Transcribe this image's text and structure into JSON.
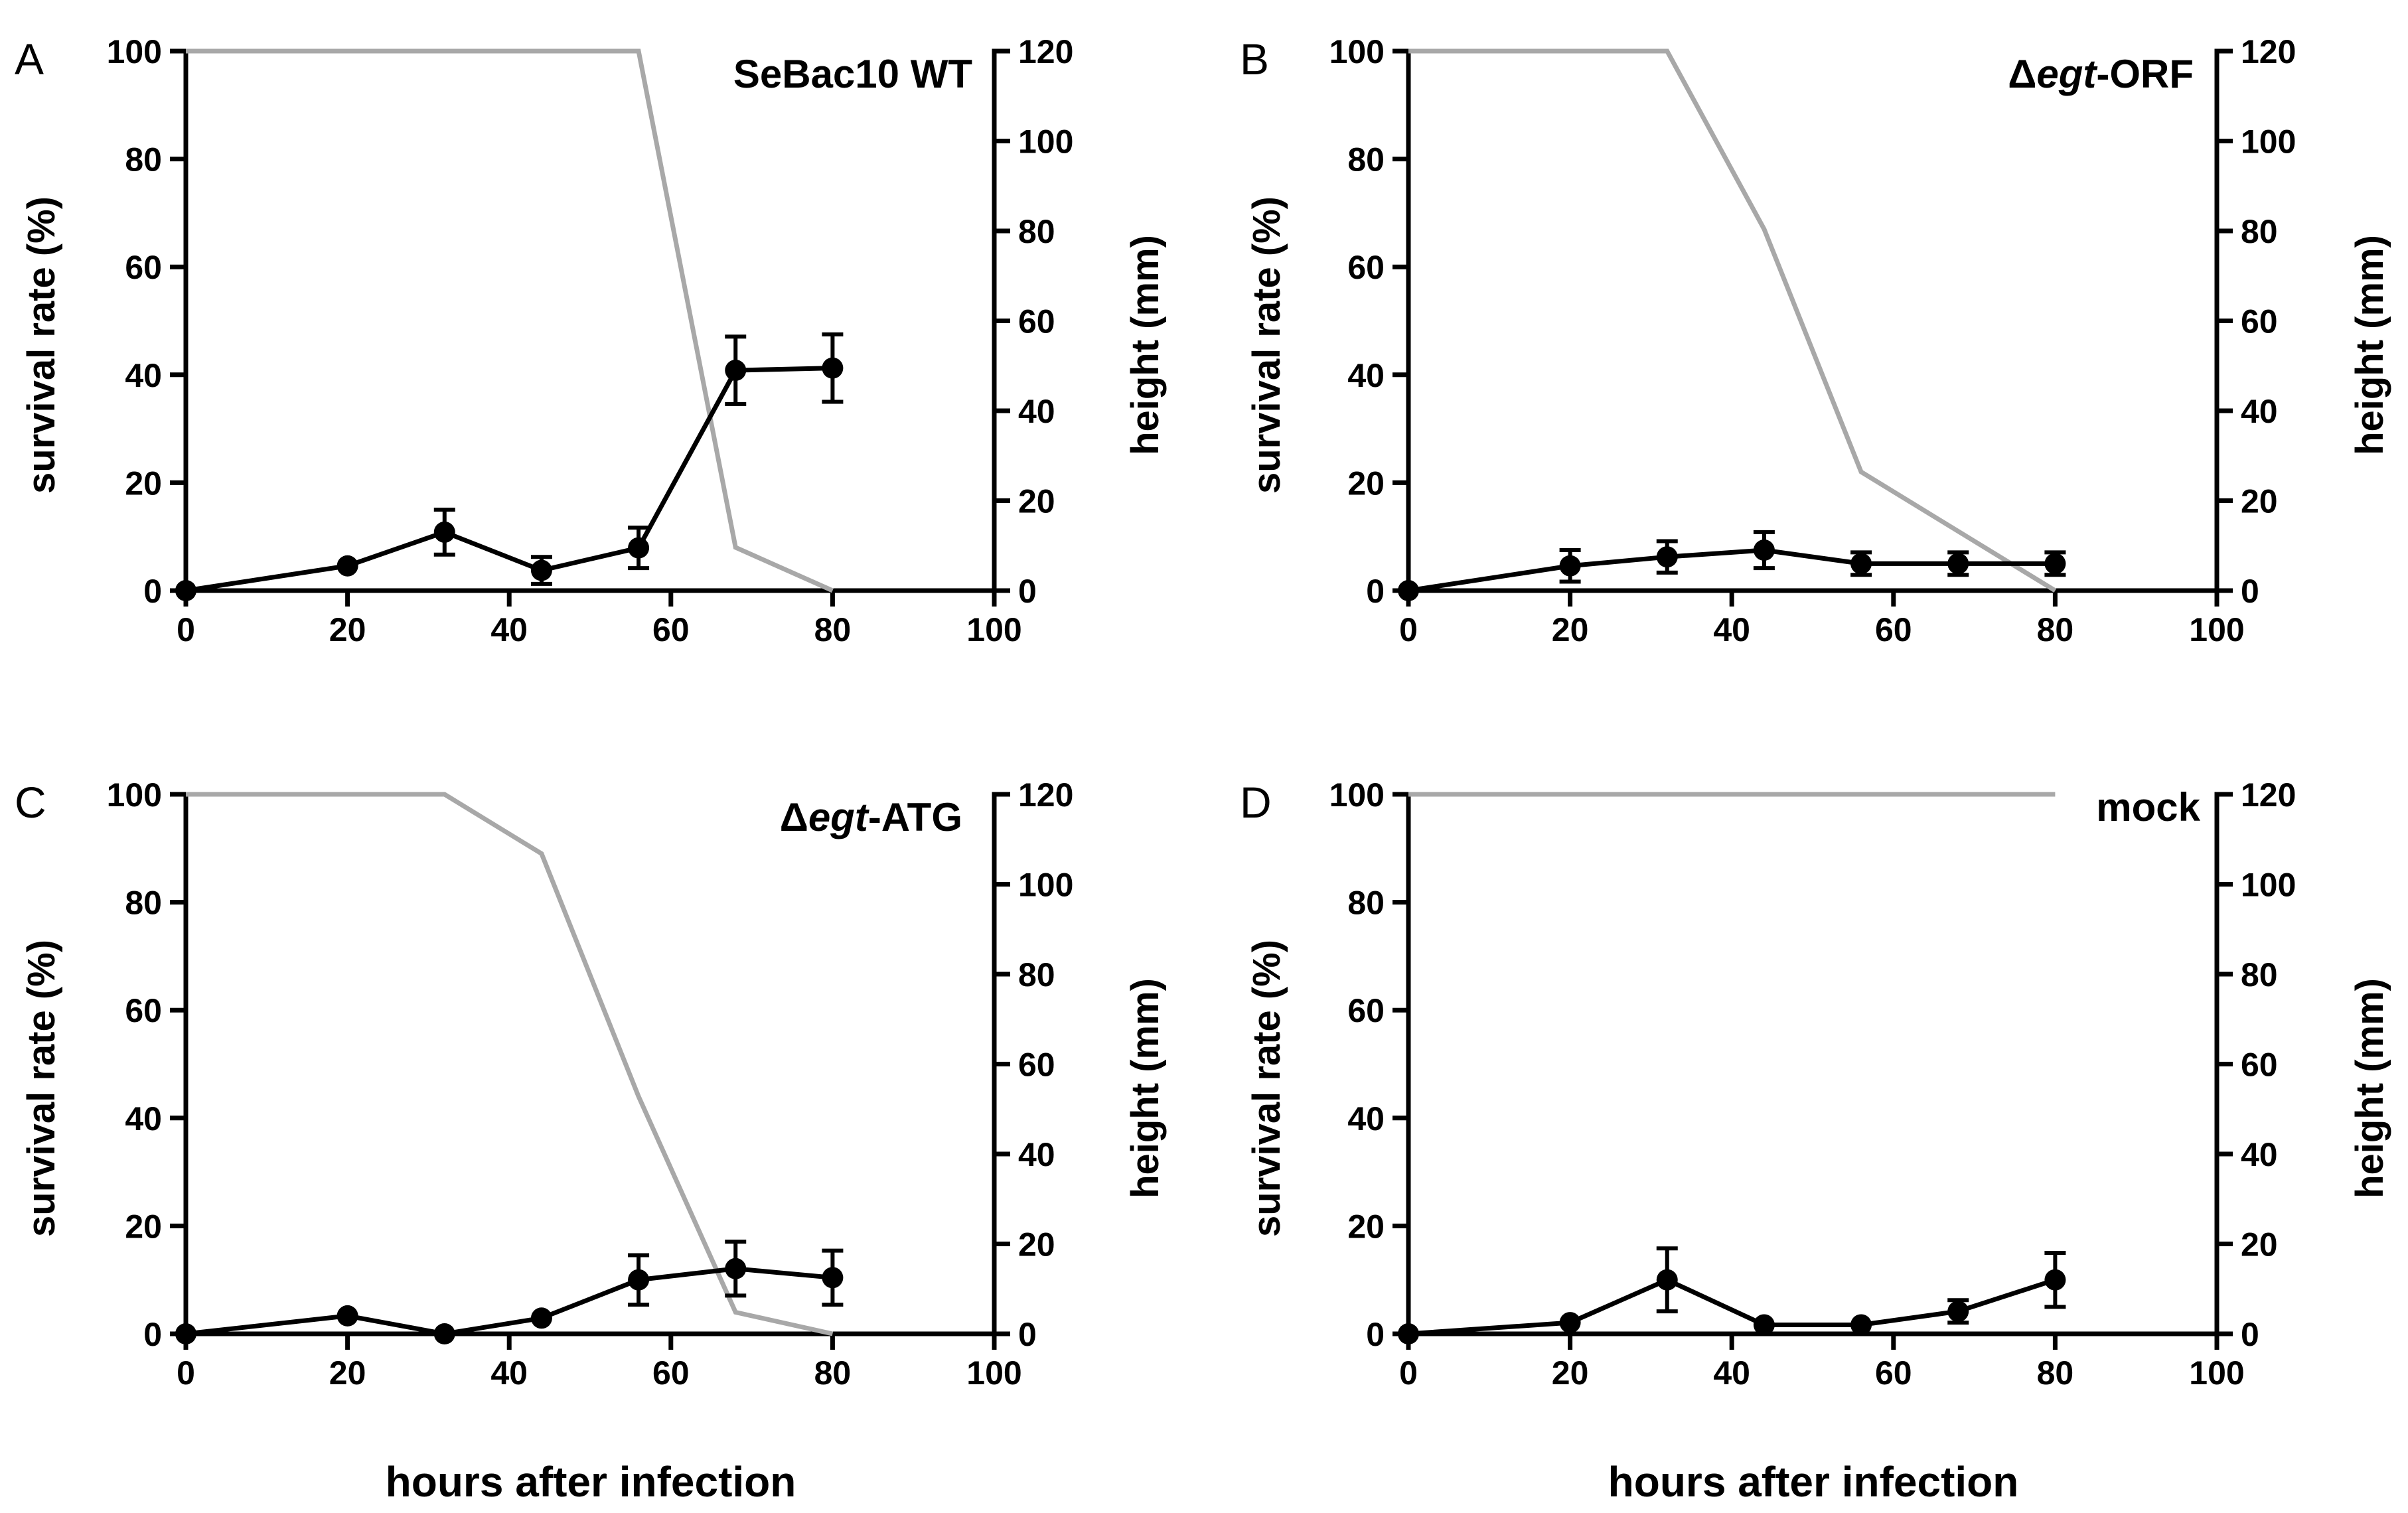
{
  "figure": {
    "x_axis_title": "hours after infection",
    "left_axis_title": "survival rate (%)",
    "right_axis_title": "height (mm)",
    "height_line_color": "#a8a8a8",
    "survival_line_color": "#000000"
  },
  "chart_data": [
    {
      "type": "line",
      "panel": "A",
      "title": "SeBac10 WT",
      "xlabel": "hours after infection",
      "ylabel": "survival rate (%)",
      "y2label": "height (mm)",
      "xlim": [
        0,
        100
      ],
      "ylim": [
        0,
        100
      ],
      "y2lim": [
        0,
        120
      ],
      "xticks": [
        0,
        20,
        40,
        60,
        80,
        100
      ],
      "yticks": [
        0,
        20,
        40,
        60,
        80,
        100
      ],
      "y2ticks": [
        0,
        20,
        40,
        60,
        80,
        100,
        120
      ],
      "series": [
        {
          "name": "survival rate",
          "axis": "left",
          "x": [
            0,
            56,
            68,
            80
          ],
          "values": [
            100,
            100,
            8,
            0
          ]
        },
        {
          "name": "height",
          "axis": "right",
          "x": [
            0,
            20,
            32,
            44,
            56,
            68,
            80
          ],
          "values": [
            0,
            5.5,
            13,
            4.5,
            9.5,
            49,
            49.5
          ],
          "errors": [
            0,
            0,
            5,
            3,
            4.5,
            7.5,
            7.5
          ]
        }
      ]
    },
    {
      "type": "line",
      "panel": "B",
      "title": "Δegt-ORF",
      "title_parts": [
        "Δ",
        "egt",
        "-ORF"
      ],
      "xlabel": "hours after infection",
      "ylabel": "survival rate (%)",
      "y2label": "height (mm)",
      "xlim": [
        0,
        100
      ],
      "ylim": [
        0,
        100
      ],
      "y2lim": [
        0,
        120
      ],
      "xticks": [
        0,
        20,
        40,
        60,
        80,
        100
      ],
      "yticks": [
        0,
        20,
        40,
        60,
        80,
        100
      ],
      "y2ticks": [
        0,
        20,
        40,
        60,
        80,
        100,
        120
      ],
      "series": [
        {
          "name": "survival rate",
          "axis": "left",
          "x": [
            0,
            32,
            44,
            56,
            80
          ],
          "values": [
            100,
            100,
            67,
            22,
            0
          ]
        },
        {
          "name": "height",
          "axis": "right",
          "x": [
            0,
            20,
            32,
            44,
            56,
            68,
            80
          ],
          "values": [
            0,
            5.5,
            7.5,
            9,
            6,
            6,
            6
          ],
          "errors": [
            0,
            3.5,
            3.5,
            4,
            2.5,
            2.5,
            2.5
          ]
        }
      ]
    },
    {
      "type": "line",
      "panel": "C",
      "title": "Δegt-ATG",
      "title_parts": [
        "Δ",
        "egt",
        "-ATG"
      ],
      "xlabel": "hours after infection",
      "ylabel": "survival rate (%)",
      "y2label": "height (mm)",
      "xlim": [
        0,
        100
      ],
      "ylim": [
        0,
        100
      ],
      "y2lim": [
        0,
        120
      ],
      "xticks": [
        0,
        20,
        40,
        60,
        80,
        100
      ],
      "yticks": [
        0,
        20,
        40,
        60,
        80,
        100
      ],
      "y2ticks": [
        0,
        20,
        40,
        60,
        80,
        100,
        120
      ],
      "series": [
        {
          "name": "survival rate",
          "axis": "left",
          "x": [
            0,
            32,
            44,
            56,
            68,
            80
          ],
          "values": [
            100,
            100,
            89,
            44,
            4,
            0
          ]
        },
        {
          "name": "height",
          "axis": "right",
          "x": [
            0,
            20,
            32,
            44,
            56,
            68,
            80
          ],
          "values": [
            0,
            4,
            0,
            3.5,
            12,
            14.5,
            12.5
          ],
          "errors": [
            0,
            0,
            0,
            0,
            5.5,
            6,
            6
          ]
        }
      ]
    },
    {
      "type": "line",
      "panel": "D",
      "title": "mock",
      "xlabel": "hours after infection",
      "ylabel": "survival rate (%)",
      "y2label": "height (mm)",
      "xlim": [
        0,
        100
      ],
      "ylim": [
        0,
        100
      ],
      "y2lim": [
        0,
        120
      ],
      "xticks": [
        0,
        20,
        40,
        60,
        80,
        100
      ],
      "yticks": [
        0,
        20,
        40,
        60,
        80,
        100
      ],
      "y2ticks": [
        0,
        20,
        40,
        60,
        80,
        100,
        120
      ],
      "series": [
        {
          "name": "survival rate",
          "axis": "left",
          "x": [
            0,
            80
          ],
          "values": [
            100,
            100
          ]
        },
        {
          "name": "height",
          "axis": "right",
          "x": [
            0,
            20,
            32,
            44,
            56,
            68,
            80
          ],
          "values": [
            0,
            2.5,
            12,
            2,
            2,
            5,
            12
          ],
          "errors": [
            0,
            0,
            7,
            0,
            0,
            2.5,
            6
          ]
        }
      ]
    }
  ]
}
